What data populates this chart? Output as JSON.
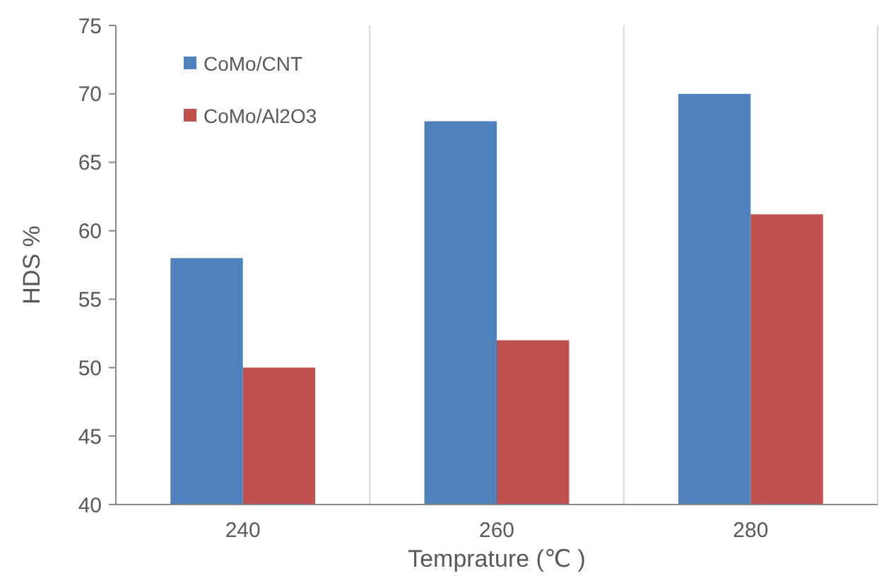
{
  "chart_data": {
    "type": "bar",
    "xlabel": "Temprature (℃ )",
    "ylabel": "HDS %",
    "categories": [
      "240",
      "260",
      "280"
    ],
    "series": [
      {
        "name": "CoMo/CNT",
        "color": "#4f81bd",
        "values": [
          58,
          68,
          70
        ]
      },
      {
        "name": "CoMo/Al2O3",
        "color": "#c0504d",
        "values": [
          50,
          52,
          61.2
        ]
      }
    ],
    "ylim": [
      40,
      75
    ],
    "yticks": [
      40,
      45,
      50,
      55,
      60,
      65,
      70,
      75
    ],
    "grid": "x",
    "legend": "top left"
  }
}
